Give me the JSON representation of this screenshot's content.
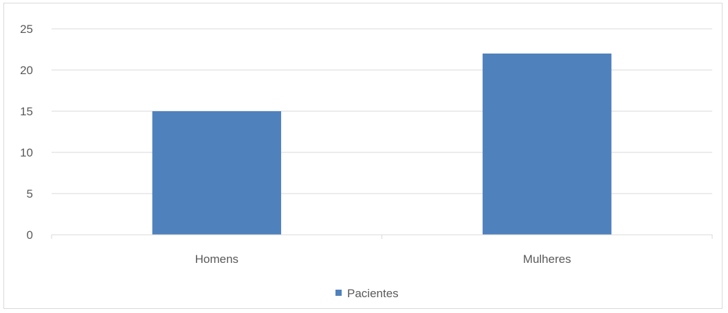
{
  "chart_data": {
    "type": "bar",
    "categories": [
      "Homens",
      "Mulheres"
    ],
    "series": [
      {
        "name": "Pacientes",
        "values": [
          15,
          22
        ],
        "color": "#4F81BD"
      }
    ],
    "ylim": [
      0,
      25
    ],
    "yticks": [
      0,
      5,
      10,
      15,
      20,
      25
    ],
    "grid": true,
    "gridline_color": "#D9D9D9",
    "axis_color": "#D9D9D9",
    "text_color": "#595959",
    "legend_position": "bottom"
  }
}
